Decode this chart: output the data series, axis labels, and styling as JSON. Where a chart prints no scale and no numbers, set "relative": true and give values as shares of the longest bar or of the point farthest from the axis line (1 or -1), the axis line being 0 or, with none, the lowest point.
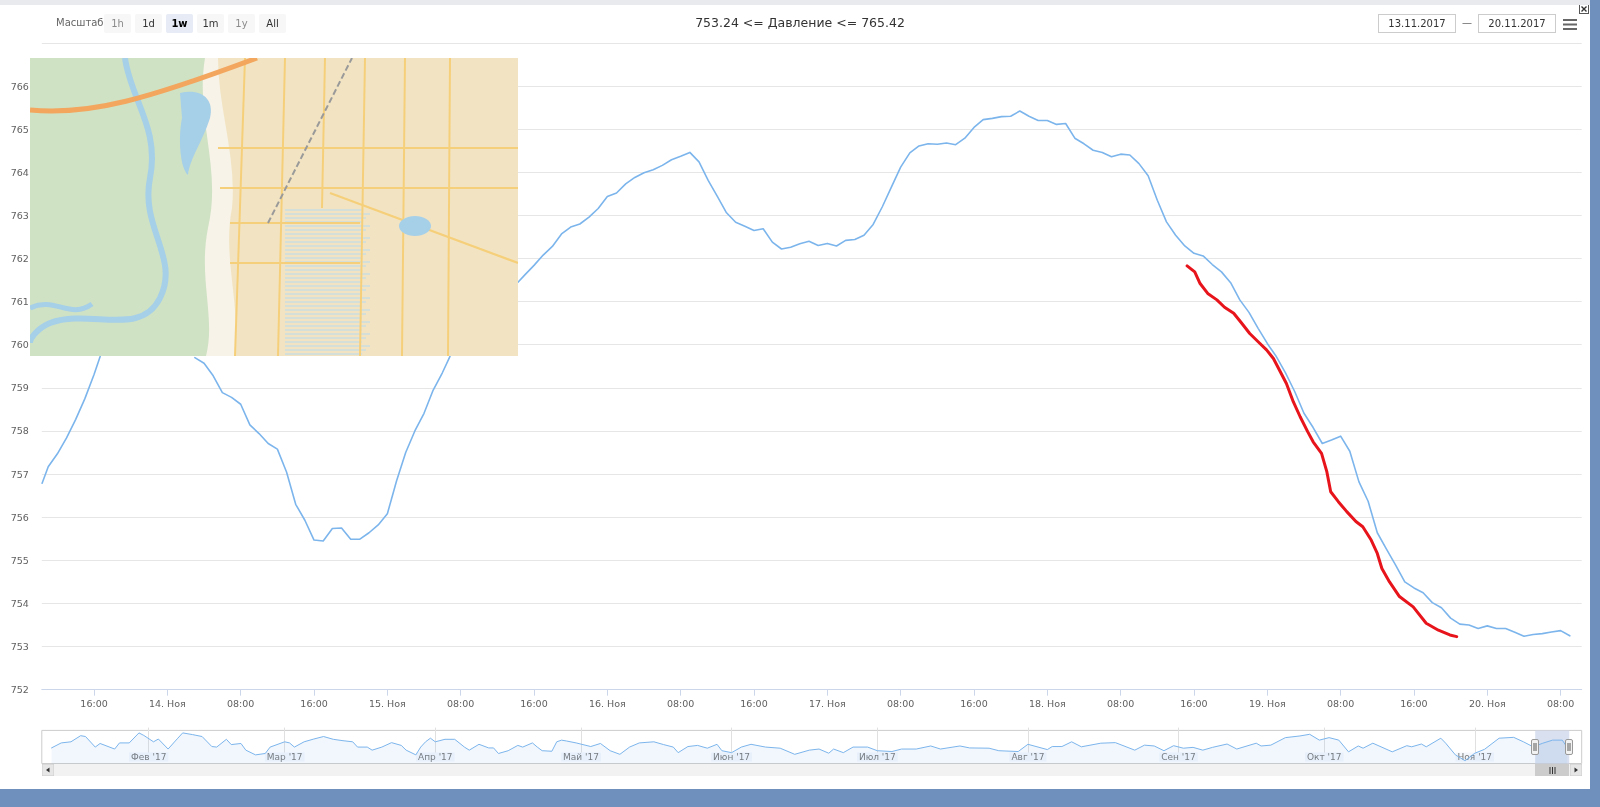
{
  "chart_data": [
    {
      "type": "line",
      "title": "753.24 <= Давление <= 765.42",
      "annotations": [
        "Масштаб",
        "1h",
        "1d",
        "1w",
        "1m",
        "1y",
        "All",
        "13.11.2017",
        "—",
        "20.11.2017"
      ],
      "series": [
        {
          "color": "#7cb5ec",
          "x": [
            "2017-11-13T10:20",
            "2017-11-13T11:00",
            "2017-11-13T12:00",
            "2017-11-13T13:00",
            "2017-11-13T14:00",
            "2017-11-13T15:00",
            "2017-11-13T16:00",
            "2017-11-13T16:40",
            "2017-11-13T20:00",
            "2017-11-14T03:00",
            "2017-11-14T04:00",
            "2017-11-14T05:00",
            "2017-11-14T06:00",
            "2017-11-14T07:00",
            "2017-11-14T08:00",
            "2017-11-14T09:00",
            "2017-11-14T10:00",
            "2017-11-14T11:00",
            "2017-11-14T12:00",
            "2017-11-14T13:00",
            "2017-11-14T14:00",
            "2017-11-14T15:00",
            "2017-11-14T16:00",
            "2017-11-14T17:00",
            "2017-11-14T18:00",
            "2017-11-14T19:00",
            "2017-11-14T20:00",
            "2017-11-14T21:00",
            "2017-11-14T22:00",
            "2017-11-14T23:00",
            "2017-11-15T00:00",
            "2017-11-15T01:00",
            "2017-11-15T02:00",
            "2017-11-15T03:00",
            "2017-11-15T04:00",
            "2017-11-15T05:00",
            "2017-11-15T06:00",
            "2017-11-15T06:50",
            "2017-11-15T10:00",
            "2017-11-15T14:15",
            "2017-11-15T15:00",
            "2017-11-15T16:00",
            "2017-11-15T17:00",
            "2017-11-15T18:00",
            "2017-11-15T19:00",
            "2017-11-15T20:00",
            "2017-11-15T21:00",
            "2017-11-15T22:00",
            "2017-11-15T23:00",
            "2017-11-16T00:00",
            "2017-11-16T01:00",
            "2017-11-16T02:00",
            "2017-11-16T03:00",
            "2017-11-16T04:00",
            "2017-11-16T05:00",
            "2017-11-16T06:00",
            "2017-11-16T07:00",
            "2017-11-16T08:00",
            "2017-11-16T09:00",
            "2017-11-16T10:00",
            "2017-11-16T11:00",
            "2017-11-16T12:00",
            "2017-11-16T13:00",
            "2017-11-16T14:00",
            "2017-11-16T15:00",
            "2017-11-16T16:00",
            "2017-11-16T17:00",
            "2017-11-16T18:00",
            "2017-11-16T19:00",
            "2017-11-16T20:00",
            "2017-11-16T21:00",
            "2017-11-16T22:00",
            "2017-11-16T23:00",
            "2017-11-17T00:00",
            "2017-11-17T01:00",
            "2017-11-17T02:00",
            "2017-11-17T03:00",
            "2017-11-17T04:00",
            "2017-11-17T05:00",
            "2017-11-17T06:00",
            "2017-11-17T07:00",
            "2017-11-17T08:00",
            "2017-11-17T09:00",
            "2017-11-17T10:00",
            "2017-11-17T11:00",
            "2017-11-17T12:00",
            "2017-11-17T13:00",
            "2017-11-17T14:00",
            "2017-11-17T15:00",
            "2017-11-17T16:00",
            "2017-11-17T17:00",
            "2017-11-17T18:00",
            "2017-11-17T19:00",
            "2017-11-17T20:00",
            "2017-11-17T21:00",
            "2017-11-17T22:00",
            "2017-11-17T23:00",
            "2017-11-18T00:00",
            "2017-11-18T01:00",
            "2017-11-18T02:00",
            "2017-11-18T03:00",
            "2017-11-18T04:00",
            "2017-11-18T05:00",
            "2017-11-18T06:00",
            "2017-11-18T07:00",
            "2017-11-18T08:00",
            "2017-11-18T09:00",
            "2017-11-18T10:00",
            "2017-11-18T11:00",
            "2017-11-18T12:00",
            "2017-11-18T13:00",
            "2017-11-18T14:00",
            "2017-11-18T15:00",
            "2017-11-18T16:00",
            "2017-11-18T17:00",
            "2017-11-18T18:00",
            "2017-11-18T19:00",
            "2017-11-18T20:00",
            "2017-11-18T21:00",
            "2017-11-18T22:00",
            "2017-11-18T23:00",
            "2017-11-19T00:00",
            "2017-11-19T01:00",
            "2017-11-19T02:00",
            "2017-11-19T03:00",
            "2017-11-19T04:00",
            "2017-11-19T05:00",
            "2017-11-19T06:00",
            "2017-11-19T07:00",
            "2017-11-19T08:00",
            "2017-11-19T09:00",
            "2017-11-19T10:00",
            "2017-11-19T11:00",
            "2017-11-19T12:00",
            "2017-11-19T13:00",
            "2017-11-19T14:00",
            "2017-11-19T15:00",
            "2017-11-19T16:00",
            "2017-11-19T17:00",
            "2017-11-19T18:00",
            "2017-11-19T19:00",
            "2017-11-19T20:00",
            "2017-11-19T21:00",
            "2017-11-19T22:00",
            "2017-11-19T23:00",
            "2017-11-20T00:00",
            "2017-11-20T01:00",
            "2017-11-20T02:00",
            "2017-11-20T03:00",
            "2017-11-20T04:00",
            "2017-11-20T05:00",
            "2017-11-20T06:00",
            "2017-11-20T07:00",
            "2017-11-20T08:00",
            "2017-11-20T09:00"
          ],
          "values": [
            756.79,
            757.17,
            757.47,
            757.84,
            758.27,
            758.75,
            759.31,
            759.73,
            null,
            759.7,
            759.57,
            759.28,
            758.89,
            758.78,
            758.62,
            758.14,
            757.94,
            757.71,
            757.58,
            757.05,
            756.3,
            755.93,
            755.47,
            755.45,
            755.74,
            755.75,
            755.49,
            755.49,
            755.64,
            755.82,
            756.08,
            756.84,
            757.5,
            758.0,
            758.41,
            758.95,
            759.35,
            759.73,
            null,
            761.45,
            761.62,
            761.84,
            762.08,
            762.28,
            762.57,
            762.73,
            762.8,
            762.96,
            763.16,
            763.44,
            763.52,
            763.73,
            763.88,
            763.99,
            764.06,
            764.16,
            764.29,
            764.37,
            764.46,
            764.24,
            763.81,
            763.44,
            763.06,
            762.84,
            762.75,
            762.65,
            762.69,
            762.38,
            762.22,
            762.26,
            762.34,
            762.4,
            762.3,
            762.35,
            762.29,
            762.42,
            762.44,
            762.54,
            762.79,
            763.2,
            763.66,
            764.12,
            764.45,
            764.61,
            764.66,
            764.65,
            764.68,
            764.64,
            764.79,
            765.04,
            765.22,
            765.25,
            765.29,
            765.3,
            765.42,
            765.3,
            765.2,
            765.2,
            765.11,
            765.13,
            764.79,
            764.66,
            764.51,
            764.46,
            764.36,
            764.42,
            764.4,
            764.2,
            763.92,
            763.35,
            762.85,
            762.54,
            762.29,
            762.12,
            762.06,
            761.86,
            761.69,
            761.44,
            761.04,
            760.75,
            760.38,
            760.03,
            759.72,
            759.34,
            758.91,
            758.41,
            758.08,
            757.71,
            757.79,
            757.88,
            757.53,
            756.82,
            756.37,
            755.64,
            755.26,
            754.89,
            754.5,
            754.36,
            754.25,
            754.02,
            753.9,
            753.66,
            753.52,
            753.5,
            753.42,
            753.48,
            753.42,
            753.42,
            753.33,
            753.24,
            753.28,
            753.3,
            753.34,
            753.37,
            753.25
          ]
        },
        {
          "color": "#e8141c",
          "x": [
            "2017-11-18T15:15",
            "2017-11-18T16:05",
            "2017-11-18T16:40",
            "2017-11-18T17:30",
            "2017-11-18T18:30",
            "2017-11-18T19:20",
            "2017-11-18T20:20",
            "2017-11-18T21:10",
            "2017-11-18T22:05",
            "2017-11-18T23:00",
            "2017-11-18T23:55",
            "2017-11-19T00:40",
            "2017-11-19T01:20",
            "2017-11-19T02:05",
            "2017-11-19T02:50",
            "2017-11-19T03:35",
            "2017-11-19T04:25",
            "2017-11-19T05:00",
            "2017-11-19T05:55",
            "2017-11-19T06:30",
            "2017-11-19T06:55",
            "2017-11-19T07:45",
            "2017-11-19T08:40",
            "2017-11-19T09:40",
            "2017-11-19T10:25",
            "2017-11-19T11:20",
            "2017-11-19T12:00",
            "2017-11-19T12:30",
            "2017-11-19T13:20",
            "2017-11-19T14:25",
            "2017-11-19T15:55",
            "2017-11-19T17:20",
            "2017-11-19T18:40",
            "2017-11-19T19:55",
            "2017-11-19T20:40"
          ],
          "values": [
            761.83,
            761.69,
            761.42,
            761.19,
            761.04,
            760.87,
            760.73,
            760.51,
            760.26,
            760.07,
            759.88,
            759.68,
            759.41,
            759.1,
            758.68,
            758.33,
            757.98,
            757.75,
            757.48,
            757.05,
            756.59,
            756.36,
            756.13,
            755.9,
            755.78,
            755.47,
            755.16,
            754.81,
            754.5,
            754.16,
            753.92,
            753.54,
            753.38,
            753.27,
            753.23
          ]
        }
      ],
      "xlim": [
        "2017-11-13T10:18",
        "2017-11-20T10:18"
      ],
      "xticks": [
        {
          "value": "2017-11-13T16:00",
          "label": "16:00"
        },
        {
          "value": "2017-11-14T00:00",
          "label": "14. Ноя"
        },
        {
          "value": "2017-11-14T08:00",
          "label": "08:00"
        },
        {
          "value": "2017-11-14T16:00",
          "label": "16:00"
        },
        {
          "value": "2017-11-15T00:00",
          "label": "15. Ноя"
        },
        {
          "value": "2017-11-15T08:00",
          "label": "08:00"
        },
        {
          "value": "2017-11-15T16:00",
          "label": "16:00"
        },
        {
          "value": "2017-11-16T00:00",
          "label": "16. Ноя"
        },
        {
          "value": "2017-11-16T08:00",
          "label": "08:00"
        },
        {
          "value": "2017-11-16T16:00",
          "label": "16:00"
        },
        {
          "value": "2017-11-17T00:00",
          "label": "17. Ноя"
        },
        {
          "value": "2017-11-17T08:00",
          "label": "08:00"
        },
        {
          "value": "2017-11-17T16:00",
          "label": "16:00"
        },
        {
          "value": "2017-11-18T00:00",
          "label": "18. Ноя"
        },
        {
          "value": "2017-11-18T08:00",
          "label": "08:00"
        },
        {
          "value": "2017-11-18T16:00",
          "label": "16:00"
        },
        {
          "value": "2017-11-19T00:00",
          "label": "19. Ноя"
        },
        {
          "value": "2017-11-19T08:00",
          "label": "08:00"
        },
        {
          "value": "2017-11-19T16:00",
          "label": "16:00"
        },
        {
          "value": "2017-11-20T00:00",
          "label": "20. Ноя"
        },
        {
          "value": "2017-11-20T08:00",
          "label": "08:00"
        }
      ],
      "ylim": [
        752,
        767
      ],
      "yticks": [
        752,
        753,
        754,
        755,
        756,
        757,
        758,
        759,
        760,
        761,
        762,
        763,
        764,
        765,
        766,
        {
          "value": 767,
          "label": null
        }
      ],
      "grid": "y",
      "marker": "none"
    },
    {
      "type": "area",
      "relative": true,
      "color": "#7cb5ec",
      "x": [
        "2017-01-12",
        "2017-01-14",
        "2017-01-16",
        "2017-01-18",
        "2017-01-19",
        "2017-01-21",
        "2017-01-22",
        "2017-01-25",
        "2017-01-26",
        "2017-01-28",
        "2017-01-30",
        "2017-01-31",
        "2017-02-02",
        "2017-02-03",
        "2017-02-05",
        "2017-02-07",
        "2017-02-08",
        "2017-02-10",
        "2017-02-12",
        "2017-02-14",
        "2017-02-15",
        "2017-02-17",
        "2017-02-18",
        "2017-02-20",
        "2017-02-21",
        "2017-02-23",
        "2017-02-25",
        "2017-02-26",
        "2017-03-01",
        "2017-03-02",
        "2017-03-03",
        "2017-03-05",
        "2017-03-07",
        "2017-03-09",
        "2017-03-11",
        "2017-03-13",
        "2017-03-15",
        "2017-03-16",
        "2017-03-18",
        "2017-03-19",
        "2017-03-21",
        "2017-03-23",
        "2017-03-25",
        "2017-03-26",
        "2017-03-28",
        "2017-03-29",
        "2017-03-30",
        "2017-03-31",
        "2017-04-01",
        "2017-04-03",
        "2017-04-05",
        "2017-04-07",
        "2017-04-08",
        "2017-04-10",
        "2017-04-12",
        "2017-04-13",
        "2017-04-14",
        "2017-04-16",
        "2017-04-18",
        "2017-04-19",
        "2017-04-21",
        "2017-04-22",
        "2017-04-23",
        "2017-04-25",
        "2017-04-26",
        "2017-04-27",
        "2017-04-28",
        "2017-04-30",
        "2017-05-03",
        "2017-05-05",
        "2017-05-07",
        "2017-05-09",
        "2017-05-11",
        "2017-05-13",
        "2017-05-16",
        "2017-05-18",
        "2017-05-20",
        "2017-05-21",
        "2017-05-23",
        "2017-05-25",
        "2017-05-27",
        "2017-05-29",
        "2017-05-30",
        "2017-06-01",
        "2017-06-03",
        "2017-06-05",
        "2017-06-08",
        "2017-06-11",
        "2017-06-14",
        "2017-06-17",
        "2017-06-19",
        "2017-06-21",
        "2017-06-22",
        "2017-06-24",
        "2017-06-26",
        "2017-06-29",
        "2017-07-01",
        "2017-07-04",
        "2017-07-06",
        "2017-07-09",
        "2017-07-12",
        "2017-07-14",
        "2017-07-18",
        "2017-07-20",
        "2017-07-24",
        "2017-07-26",
        "2017-07-30",
        "2017-08-01",
        "2017-08-05",
        "2017-08-06",
        "2017-08-08",
        "2017-08-10",
        "2017-08-12",
        "2017-08-16",
        "2017-08-19",
        "2017-08-23",
        "2017-08-25",
        "2017-08-27",
        "2017-08-29",
        "2017-08-31",
        "2017-09-02",
        "2017-09-04",
        "2017-09-06",
        "2017-09-08",
        "2017-09-11",
        "2017-09-13",
        "2017-09-17",
        "2017-09-18",
        "2017-09-20",
        "2017-09-23",
        "2017-09-26",
        "2017-09-28",
        "2017-09-30",
        "2017-10-02",
        "2017-10-04",
        "2017-10-06",
        "2017-10-08",
        "2017-10-09",
        "2017-10-11",
        "2017-10-15",
        "2017-10-18",
        "2017-10-19",
        "2017-10-21",
        "2017-10-22",
        "2017-10-25",
        "2017-10-26",
        "2017-10-28",
        "2017-10-30",
        "2017-11-01",
        "2017-11-03",
        "2017-11-06",
        "2017-11-09",
        "2017-11-11",
        "2017-11-13",
        "2017-11-15",
        "2017-11-17",
        "2017-11-19",
        "2017-11-20"
      ],
      "values": [
        0.46,
        0.64,
        0.68,
        0.9,
        0.87,
        0.49,
        0.62,
        0.42,
        0.64,
        0.64,
        1,
        0.91,
        0.68,
        0.78,
        0.42,
        0.81,
        1,
        0.94,
        0.87,
        0.51,
        0.49,
        0.77,
        0.58,
        0.62,
        0.38,
        0.21,
        0.26,
        0.49,
        0.68,
        0.64,
        0.49,
        0.68,
        0.78,
        0.87,
        0.77,
        0.72,
        0.68,
        0.49,
        0.49,
        0.38,
        0.49,
        0.65,
        0.55,
        0.38,
        0.21,
        0.49,
        0.68,
        0.81,
        0.68,
        0.77,
        0.77,
        0.49,
        0.38,
        0.59,
        0.46,
        0.46,
        0.26,
        0.36,
        0.55,
        0.49,
        0.64,
        0.49,
        0.36,
        0.34,
        0.68,
        0.74,
        0.71,
        0.64,
        0.51,
        0.62,
        0.36,
        0.23,
        0.49,
        0.64,
        0.68,
        0.58,
        0.49,
        0.29,
        0.51,
        0.55,
        0.45,
        0.59,
        0.36,
        0.29,
        0.49,
        0.59,
        0.49,
        0.45,
        0.23,
        0.38,
        0.42,
        0.27,
        0.42,
        0.29,
        0.49,
        0.49,
        0.36,
        0.33,
        0.42,
        0.42,
        0.53,
        0.42,
        0.53,
        0.46,
        0.45,
        0.36,
        0.33,
        0.59,
        0.4,
        0.51,
        0.51,
        0.68,
        0.5,
        0.63,
        0.65,
        0.38,
        0.56,
        0.53,
        0.36,
        0.54,
        0.45,
        0.48,
        0.38,
        0.48,
        0.6,
        0.42,
        0.63,
        0.53,
        0.56,
        0.83,
        0.89,
        0.95,
        0.74,
        0.83,
        0.74,
        0.32,
        0.53,
        0.45,
        0.63,
        0.32,
        0.54,
        0.5,
        0.6,
        0.5,
        0.81,
        0.63,
        0.21,
        0,
        0.27,
        0.41,
        0.81,
        0.84,
        0.68,
        0.5,
        0.63,
        0.74,
        0.74,
        0.48
      ],
      "xlim": [
        "2017-01-10",
        "2017-11-23"
      ],
      "xticks": [
        {
          "value": "2017-02-01",
          "label": "Фев '17"
        },
        {
          "value": "2017-03-01",
          "label": "Мар '17"
        },
        {
          "value": "2017-04-01",
          "label": "Апр '17"
        },
        {
          "value": "2017-05-01",
          "label": "Май '17"
        },
        {
          "value": "2017-06-01",
          "label": "Июн '17"
        },
        {
          "value": "2017-07-01",
          "label": "Июл '17"
        },
        {
          "value": "2017-08-01",
          "label": "Авг '17"
        },
        {
          "value": "2017-09-01",
          "label": "Сен '17"
        },
        {
          "value": "2017-10-01",
          "label": "Окт '17"
        },
        {
          "value": "2017-11-01",
          "label": "Ноя '17"
        }
      ],
      "grid": "x",
      "bands": [
        {
          "axis": "x",
          "from": "2017-11-13T10:18",
          "to": "2017-11-20T10:18",
          "color": "#ccd6eb"
        }
      ]
    }
  ]
}
